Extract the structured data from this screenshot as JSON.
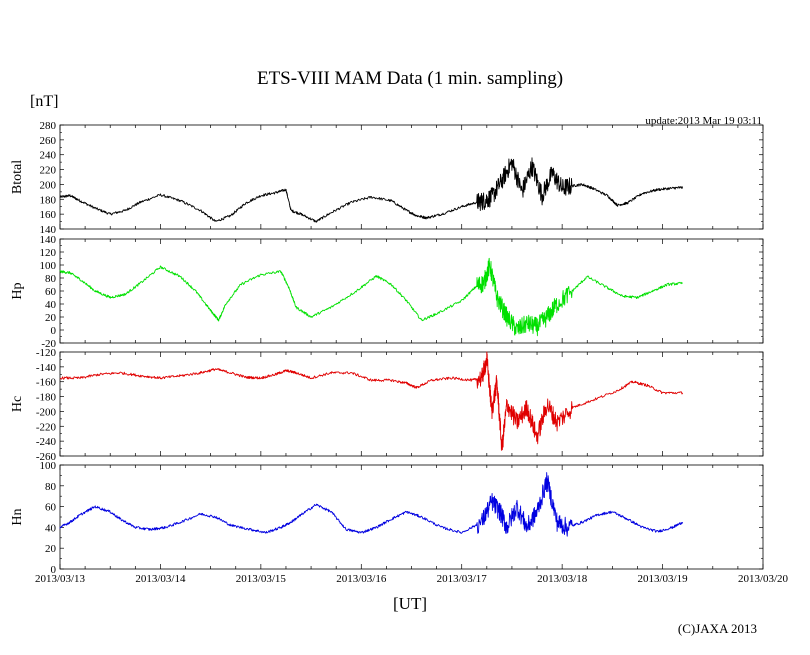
{
  "chart_data": {
    "type": "line",
    "title": "ETS-VIII MAM Data (1 min. sampling)",
    "unit_label": "[nT]",
    "update_label": "update:2013 Mar 19 03:11",
    "xlabel": "[UT]",
    "copyright": "(C)JAXA 2013",
    "x_tick_labels": [
      "2013/03/13",
      "2013/03/14",
      "2013/03/15",
      "2013/03/16",
      "2013/03/17",
      "2013/03/18",
      "2013/03/19",
      "2013/03/20"
    ],
    "xlim_days": [
      0,
      7
    ],
    "panels": [
      {
        "name": "Btotal",
        "ylabel": "Btotal",
        "color": "#000000",
        "ylim": [
          140,
          280
        ],
        "yticks": [
          140,
          160,
          180,
          200,
          220,
          240,
          260,
          280
        ],
        "x_days": [
          0,
          0.1,
          0.2,
          0.35,
          0.5,
          0.65,
          0.8,
          1.0,
          1.2,
          1.4,
          1.55,
          1.7,
          1.85,
          2.0,
          2.15,
          2.25,
          2.3,
          2.4,
          2.55,
          2.7,
          2.9,
          3.1,
          3.3,
          3.45,
          3.55,
          3.65,
          3.8,
          4.0,
          4.15,
          4.22,
          4.3,
          4.4,
          4.5,
          4.6,
          4.7,
          4.8,
          4.9,
          5.0,
          5.1,
          5.2,
          5.3,
          5.45,
          5.55,
          5.65,
          5.8,
          5.95,
          6.1,
          6.2
        ],
        "values": [
          183,
          185,
          178,
          168,
          160,
          165,
          176,
          186,
          178,
          165,
          150,
          158,
          175,
          185,
          189,
          193,
          165,
          160,
          150,
          162,
          176,
          183,
          178,
          165,
          158,
          155,
          160,
          170,
          176,
          178,
          183,
          205,
          230,
          190,
          225,
          185,
          215,
          195,
          198,
          200,
          195,
          185,
          172,
          175,
          188,
          193,
          195,
          196
        ]
      },
      {
        "name": "Hp",
        "ylabel": "Hp",
        "color": "#00e000",
        "ylim": [
          -20,
          140
        ],
        "yticks": [
          -20,
          0,
          20,
          40,
          60,
          80,
          100,
          120,
          140
        ],
        "x_days": [
          0,
          0.1,
          0.2,
          0.35,
          0.5,
          0.65,
          0.8,
          1.0,
          1.2,
          1.35,
          1.5,
          1.58,
          1.65,
          1.8,
          2.0,
          2.2,
          2.28,
          2.35,
          2.5,
          2.7,
          2.95,
          3.15,
          3.3,
          3.45,
          3.6,
          3.75,
          4.0,
          4.15,
          4.22,
          4.28,
          4.35,
          4.45,
          4.55,
          4.65,
          4.75,
          4.85,
          4.95,
          5.1,
          5.25,
          5.45,
          5.6,
          5.75,
          5.9,
          6.05,
          6.2
        ],
        "values": [
          90,
          88,
          78,
          60,
          50,
          55,
          72,
          97,
          82,
          60,
          30,
          15,
          40,
          70,
          85,
          90,
          65,
          35,
          20,
          35,
          60,
          83,
          70,
          45,
          15,
          25,
          45,
          68,
          72,
          100,
          50,
          20,
          0,
          10,
          5,
          20,
          40,
          60,
          82,
          65,
          52,
          50,
          60,
          70,
          72
        ]
      },
      {
        "name": "Hc",
        "ylabel": "Hc",
        "color": "#e00000",
        "ylim": [
          -260,
          -120
        ],
        "yticks": [
          -260,
          -240,
          -220,
          -200,
          -180,
          -160,
          -140,
          -120
        ],
        "x_days": [
          0,
          0.2,
          0.4,
          0.6,
          0.8,
          1.0,
          1.2,
          1.4,
          1.55,
          1.7,
          1.85,
          2.0,
          2.15,
          2.25,
          2.35,
          2.5,
          2.7,
          2.9,
          3.1,
          3.3,
          3.45,
          3.55,
          3.7,
          3.9,
          4.1,
          4.2,
          4.25,
          4.3,
          4.35,
          4.4,
          4.45,
          4.55,
          4.65,
          4.75,
          4.85,
          4.95,
          5.1,
          5.3,
          5.55,
          5.7,
          5.85,
          6.0,
          6.2
        ],
        "values": [
          -155,
          -155,
          -150,
          -148,
          -152,
          -155,
          -152,
          -148,
          -143,
          -148,
          -154,
          -155,
          -150,
          -145,
          -148,
          -155,
          -148,
          -148,
          -158,
          -158,
          -162,
          -168,
          -158,
          -155,
          -158,
          -155,
          -130,
          -200,
          -160,
          -250,
          -190,
          -215,
          -195,
          -235,
          -190,
          -215,
          -195,
          -185,
          -172,
          -160,
          -165,
          -175,
          -175
        ]
      },
      {
        "name": "Hn",
        "ylabel": "Hn",
        "color": "#0000e0",
        "ylim": [
          0,
          100
        ],
        "yticks": [
          0,
          20,
          40,
          60,
          80,
          100
        ],
        "x_days": [
          0,
          0.1,
          0.2,
          0.35,
          0.5,
          0.6,
          0.75,
          0.9,
          1.05,
          1.2,
          1.4,
          1.55,
          1.7,
          1.9,
          2.05,
          2.2,
          2.3,
          2.4,
          2.55,
          2.7,
          2.85,
          3.0,
          3.15,
          3.3,
          3.45,
          3.6,
          3.8,
          4.0,
          4.2,
          4.3,
          4.38,
          4.45,
          4.55,
          4.65,
          4.75,
          4.85,
          4.95,
          5.05,
          5.2,
          5.35,
          5.5,
          5.65,
          5.8,
          5.95,
          6.1,
          6.2
        ],
        "values": [
          40,
          45,
          52,
          60,
          55,
          48,
          40,
          38,
          40,
          45,
          53,
          50,
          42,
          38,
          35,
          40,
          45,
          52,
          62,
          55,
          38,
          35,
          40,
          48,
          55,
          50,
          40,
          35,
          45,
          65,
          55,
          40,
          60,
          40,
          55,
          85,
          45,
          40,
          45,
          52,
          55,
          48,
          40,
          36,
          40,
          45
        ]
      }
    ]
  }
}
